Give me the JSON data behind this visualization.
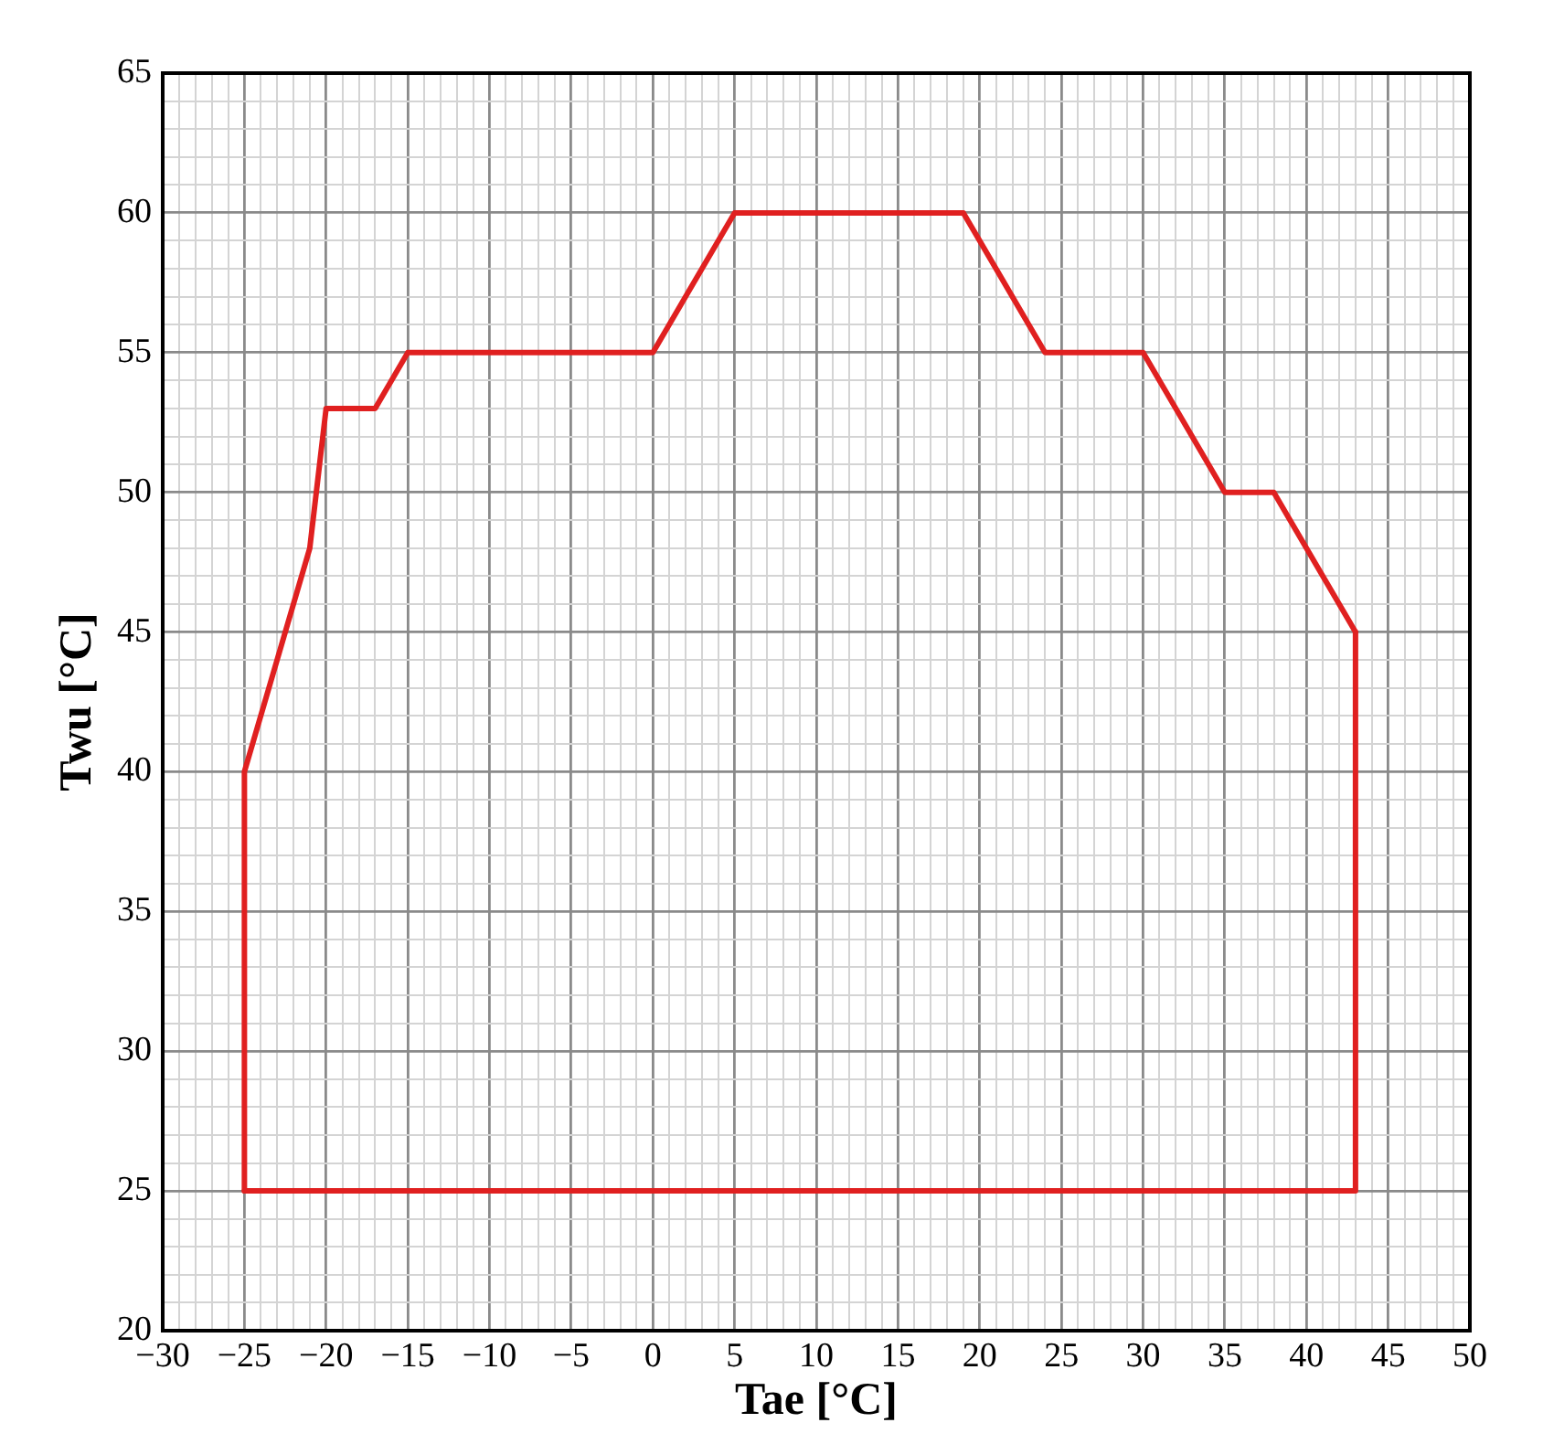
{
  "chart_data": {
    "type": "line",
    "xlabel": "Tae [°C]",
    "ylabel": "Twu [°C]",
    "series": [
      {
        "color": "#e02020",
        "x": [
          -25,
          -25,
          -21,
          -20,
          -17,
          -15,
          0,
          5,
          19,
          24,
          30,
          35,
          38,
          43
        ],
        "values": [
          25,
          40,
          48,
          53,
          53,
          55,
          55,
          60,
          60,
          55,
          55,
          50,
          50,
          45
        ]
      },
      {
        "color": "#e02020",
        "x": [
          -25,
          43,
          43
        ],
        "values": [
          25,
          25,
          45
        ]
      }
    ],
    "xlim": [
      -30,
      50
    ],
    "ylim": [
      20,
      65
    ],
    "xticks": [
      {
        "value": -30,
        "label": "−30"
      },
      {
        "value": -29,
        "label": null
      },
      {
        "value": -28,
        "label": null
      },
      {
        "value": -27,
        "label": null
      },
      {
        "value": -26,
        "label": null
      },
      {
        "value": -25,
        "label": "−25"
      },
      {
        "value": -24,
        "label": null
      },
      {
        "value": -23,
        "label": null
      },
      {
        "value": -22,
        "label": null
      },
      {
        "value": -21,
        "label": null
      },
      {
        "value": -20,
        "label": "−20"
      },
      {
        "value": -19,
        "label": null
      },
      {
        "value": -18,
        "label": null
      },
      {
        "value": -17,
        "label": null
      },
      {
        "value": -16,
        "label": null
      },
      {
        "value": -15,
        "label": "−15"
      },
      {
        "value": -14,
        "label": null
      },
      {
        "value": -13,
        "label": null
      },
      {
        "value": -12,
        "label": null
      },
      {
        "value": -11,
        "label": null
      },
      {
        "value": -10,
        "label": "−10"
      },
      {
        "value": -9,
        "label": null
      },
      {
        "value": -8,
        "label": null
      },
      {
        "value": -7,
        "label": null
      },
      {
        "value": -6,
        "label": null
      },
      {
        "value": -5,
        "label": "−5"
      },
      {
        "value": -4,
        "label": null
      },
      {
        "value": -3,
        "label": null
      },
      {
        "value": -2,
        "label": null
      },
      {
        "value": -1,
        "label": null
      },
      0,
      {
        "value": 1,
        "label": null
      },
      {
        "value": 2,
        "label": null
      },
      {
        "value": 3,
        "label": null
      },
      {
        "value": 4,
        "label": null
      },
      5,
      {
        "value": 6,
        "label": null
      },
      {
        "value": 7,
        "label": null
      },
      {
        "value": 8,
        "label": null
      },
      {
        "value": 9,
        "label": null
      },
      10,
      {
        "value": 11,
        "label": null
      },
      {
        "value": 12,
        "label": null
      },
      {
        "value": 13,
        "label": null
      },
      {
        "value": 14,
        "label": null
      },
      15,
      {
        "value": 16,
        "label": null
      },
      {
        "value": 17,
        "label": null
      },
      {
        "value": 18,
        "label": null
      },
      {
        "value": 19,
        "label": null
      },
      20,
      {
        "value": 21,
        "label": null
      },
      {
        "value": 22,
        "label": null
      },
      {
        "value": 23,
        "label": null
      },
      {
        "value": 24,
        "label": null
      },
      25,
      {
        "value": 26,
        "label": null
      },
      {
        "value": 27,
        "label": null
      },
      {
        "value": 28,
        "label": null
      },
      {
        "value": 29,
        "label": null
      },
      30,
      {
        "value": 31,
        "label": null
      },
      {
        "value": 32,
        "label": null
      },
      {
        "value": 33,
        "label": null
      },
      {
        "value": 34,
        "label": null
      },
      35,
      {
        "value": 36,
        "label": null
      },
      {
        "value": 37,
        "label": null
      },
      {
        "value": 38,
        "label": null
      },
      {
        "value": 39,
        "label": null
      },
      40,
      {
        "value": 41,
        "label": null
      },
      {
        "value": 42,
        "label": null
      },
      {
        "value": 43,
        "label": null
      },
      {
        "value": 44,
        "label": null
      },
      45,
      {
        "value": 46,
        "label": null
      },
      {
        "value": 47,
        "label": null
      },
      {
        "value": 48,
        "label": null
      },
      {
        "value": 49,
        "label": null
      },
      50
    ],
    "yticks": [
      20,
      {
        "value": 21,
        "label": null
      },
      {
        "value": 22,
        "label": null
      },
      {
        "value": 23,
        "label": null
      },
      {
        "value": 24,
        "label": null
      },
      25,
      {
        "value": 26,
        "label": null
      },
      {
        "value": 27,
        "label": null
      },
      {
        "value": 28,
        "label": null
      },
      {
        "value": 29,
        "label": null
      },
      30,
      {
        "value": 31,
        "label": null
      },
      {
        "value": 32,
        "label": null
      },
      {
        "value": 33,
        "label": null
      },
      {
        "value": 34,
        "label": null
      },
      35,
      {
        "value": 36,
        "label": null
      },
      {
        "value": 37,
        "label": null
      },
      {
        "value": 38,
        "label": null
      },
      {
        "value": 39,
        "label": null
      },
      40,
      {
        "value": 41,
        "label": null
      },
      {
        "value": 42,
        "label": null
      },
      {
        "value": 43,
        "label": null
      },
      {
        "value": 44,
        "label": null
      },
      45,
      {
        "value": 46,
        "label": null
      },
      {
        "value": 47,
        "label": null
      },
      {
        "value": 48,
        "label": null
      },
      {
        "value": 49,
        "label": null
      },
      50,
      {
        "value": 51,
        "label": null
      },
      {
        "value": 52,
        "label": null
      },
      {
        "value": 53,
        "label": null
      },
      {
        "value": 54,
        "label": null
      },
      55,
      {
        "value": 56,
        "label": null
      },
      {
        "value": 57,
        "label": null
      },
      {
        "value": 58,
        "label": null
      },
      {
        "value": 59,
        "label": null
      },
      60,
      {
        "value": 61,
        "label": null
      },
      {
        "value": 62,
        "label": null
      },
      {
        "value": 63,
        "label": null
      },
      {
        "value": 64,
        "label": null
      },
      65
    ],
    "grid": true,
    "legend": false,
    "marker": "none",
    "line_style": "solid"
  }
}
